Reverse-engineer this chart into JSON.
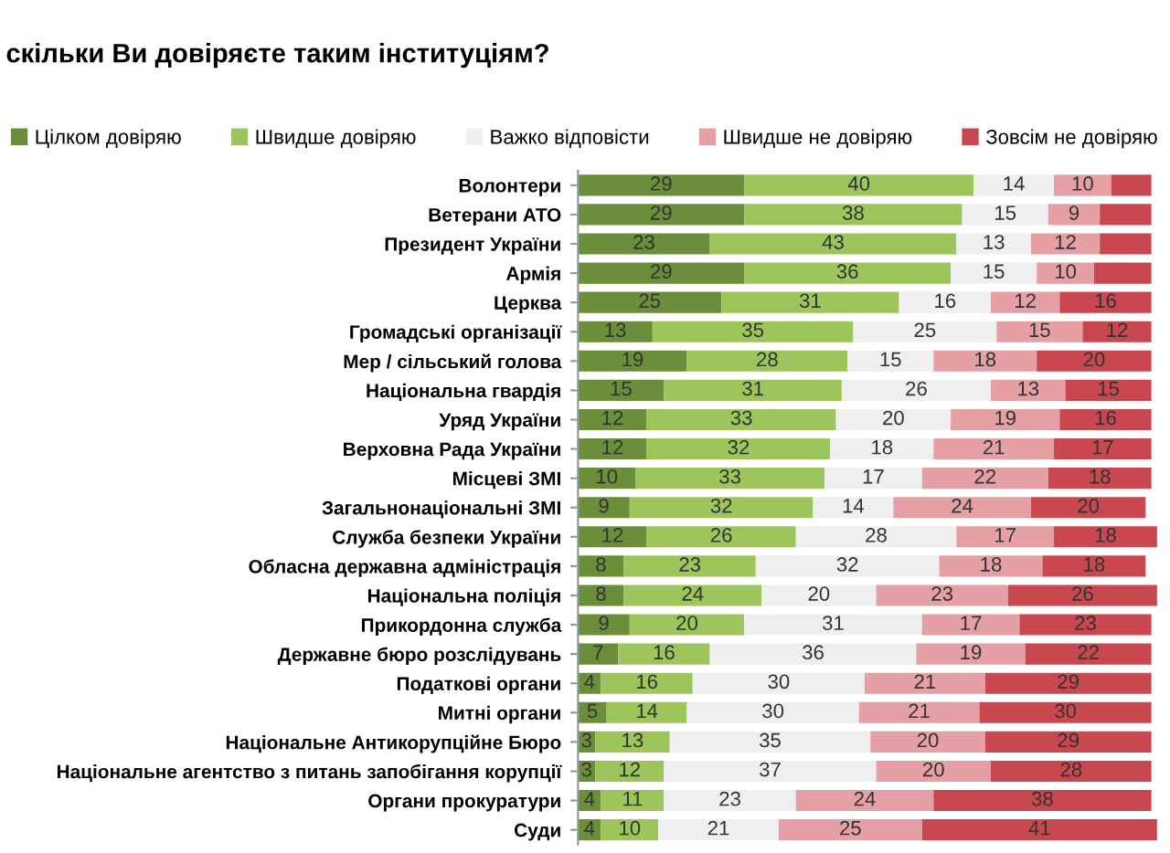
{
  "chart_data": {
    "type": "bar",
    "title": "скільки Ви довіряєте таким інституціям?",
    "orientation": "horizontal",
    "stacked": true,
    "legend": "top",
    "grid": false,
    "tick_labels": "y",
    "xlim": [
      0,
      101
    ],
    "categories": [
      "Волонтери",
      "Ветерани АТО",
      "Президент України",
      "Армія",
      "Церква",
      "Громадські організації",
      "Мер / сільський голова",
      "Національна гвардія",
      "Уряд України",
      "Верховна Рада України",
      "Місцеві ЗМІ",
      "Загальнонаціональні ЗМІ",
      "Служба безпеки України",
      "Обласна державна адміністрація",
      "Національна поліція",
      "Прикордонна служба",
      "Державне бюро розслідувань",
      "Податкові органи",
      "Митні органи",
      "Національне Антикорупційне Бюро",
      "Національне агентство з питань запобігання корупції",
      "Органи прокуратури",
      "Суди"
    ],
    "series": [
      {
        "name": "Цілком довіряю",
        "color": "#6b8e3a",
        "values": [
          29,
          29,
          23,
          29,
          25,
          13,
          19,
          15,
          12,
          12,
          10,
          9,
          12,
          8,
          8,
          9,
          7,
          4,
          5,
          3,
          3,
          4,
          4
        ],
        "value_labels": [
          "29",
          "29",
          "23",
          "29",
          "25",
          "13",
          "19",
          "15",
          "12",
          "12",
          "10",
          "9",
          "12",
          "8",
          "8",
          "9",
          "7",
          "4",
          "5",
          "3",
          "3",
          "4",
          "4"
        ]
      },
      {
        "name": "Швидше довіряю",
        "color": "#9cc55c",
        "values": [
          40,
          38,
          43,
          36,
          31,
          35,
          28,
          31,
          33,
          32,
          33,
          32,
          26,
          23,
          24,
          20,
          16,
          16,
          14,
          13,
          12,
          11,
          10
        ],
        "value_labels": [
          "40",
          "38",
          "43",
          "36",
          "31",
          "35",
          "28",
          "31",
          "33",
          "32",
          "33",
          "32",
          "26",
          "23",
          "24",
          "20",
          "16",
          "16",
          "14",
          "13",
          "12",
          "11",
          "10"
        ]
      },
      {
        "name": "Важко відповісти",
        "color": "#efefef",
        "values": [
          14,
          15,
          13,
          15,
          16,
          25,
          15,
          26,
          20,
          18,
          17,
          14,
          28,
          32,
          20,
          31,
          36,
          30,
          30,
          35,
          37,
          23,
          21
        ],
        "value_labels": [
          "14",
          "15",
          "13",
          "15",
          "16",
          "25",
          "15",
          "26",
          "20",
          "18",
          "17",
          "14",
          "28",
          "32",
          "20",
          "31",
          "36",
          "30",
          "30",
          "35",
          "37",
          "23",
          "21"
        ]
      },
      {
        "name": "Швидше не довіряю",
        "color": "#e4a0a4",
        "values": [
          10,
          9,
          12,
          10,
          12,
          15,
          18,
          13,
          19,
          21,
          22,
          24,
          17,
          18,
          23,
          17,
          19,
          21,
          21,
          20,
          20,
          24,
          25
        ],
        "value_labels": [
          "10",
          "9",
          "12",
          "10",
          "12",
          "15",
          "18",
          "13",
          "19",
          "21",
          "22",
          "24",
          "17",
          "18",
          "23",
          "17",
          "19",
          "21",
          "21",
          "20",
          "20",
          "24",
          "25"
        ]
      },
      {
        "name": "Зовсім не довіряю",
        "color": "#c9484f",
        "values": [
          7,
          9,
          9,
          10,
          16,
          12,
          20,
          15,
          16,
          17,
          18,
          20,
          18,
          18,
          26,
          23,
          22,
          29,
          30,
          29,
          28,
          38,
          41
        ],
        "value_labels": [
          null,
          null,
          null,
          null,
          "16",
          "12",
          "20",
          "15",
          "16",
          "17",
          "18",
          "20",
          "18",
          "18",
          "26",
          "23",
          "22",
          "29",
          "30",
          "29",
          "28",
          "38",
          "41"
        ]
      }
    ]
  }
}
